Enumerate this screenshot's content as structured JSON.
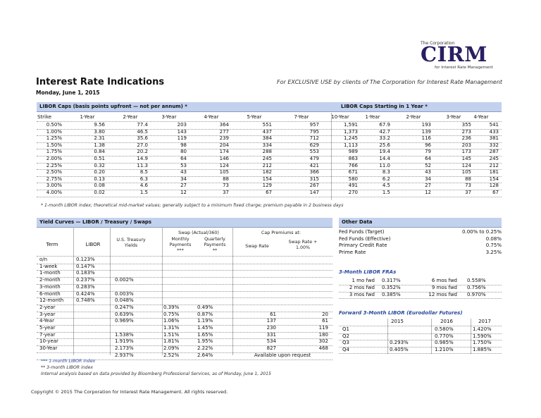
{
  "logo": {
    "corp": "The Corporation",
    "mark": "CIRM",
    "sub": "for Interest Rate Management"
  },
  "header": {
    "title": "Interest Rate Indications",
    "exclusive": "For EXCLUSIVE USE by clients of The Corporation for Interest Rate Management",
    "date": "Monday, June 1, 2015"
  },
  "caps": {
    "bar_title": "LIBOR Caps (basis points upfront — not per annum) *",
    "bar_title_forward": "LIBOR Caps Starting in 1 Year *",
    "columns": [
      "Strike",
      "1-Year",
      "2-Year",
      "3-Year",
      "4-Year",
      "5-Year",
      "7-Year",
      "10-Year"
    ],
    "forward_columns": [
      "1-Year",
      "2-Year",
      "3-Year",
      "4-Year"
    ],
    "rows": [
      [
        "0.50%",
        "9.56",
        "77.4",
        "203",
        "364",
        "551",
        "957",
        "1,591",
        "67.9",
        "193",
        "355",
        "541"
      ],
      [
        "1.00%",
        "3.80",
        "46.5",
        "143",
        "277",
        "437",
        "795",
        "1,373",
        "42.7",
        "139",
        "273",
        "433"
      ],
      [
        "1.25%",
        "2.31",
        "35.6",
        "119",
        "239",
        "384",
        "712",
        "1,245",
        "33.2",
        "116",
        "236",
        "381"
      ],
      [
        "1.50%",
        "1.38",
        "27.0",
        "98",
        "204",
        "334",
        "629",
        "1,113",
        "25.6",
        "96",
        "203",
        "332"
      ],
      [
        "1.75%",
        "0.84",
        "20.2",
        "80",
        "174",
        "288",
        "553",
        "989",
        "19.4",
        "79",
        "173",
        "287"
      ],
      [
        "2.00%",
        "0.51",
        "14.9",
        "64",
        "146",
        "245",
        "479",
        "863",
        "14.4",
        "64",
        "145",
        "245"
      ],
      [
        "2.25%",
        "0.32",
        "11.3",
        "53",
        "124",
        "212",
        "421",
        "766",
        "11.0",
        "52",
        "124",
        "212"
      ],
      [
        "2.50%",
        "0.20",
        "8.5",
        "43",
        "105",
        "182",
        "366",
        "671",
        "8.3",
        "43",
        "105",
        "181"
      ],
      [
        "2.75%",
        "0.13",
        "6.3",
        "34",
        "88",
        "154",
        "315",
        "580",
        "6.2",
        "34",
        "88",
        "154"
      ],
      [
        "3.00%",
        "0.08",
        "4.6",
        "27",
        "73",
        "129",
        "267",
        "491",
        "4.5",
        "27",
        "73",
        "128"
      ],
      [
        "4.00%",
        "0.02",
        "1.5",
        "12",
        "37",
        "67",
        "147",
        "270",
        "1.5",
        "12",
        "37",
        "67"
      ]
    ],
    "footnote": "* 1-month LIBOR index; theoretical mid-market values; generally subject to a minimum fixed charge; premium payable in 2 business days"
  },
  "yields": {
    "bar_title": "Yield Curves —  LIBOR / Treasury / Swaps",
    "h_term": "Term",
    "h_libor": "LIBOR",
    "h_treasury": "U.S. Treasury Yields",
    "h_swap_group": "Swap (Actual/360)",
    "h_monthly": "Monthly Payments",
    "h_monthly_mark": "***",
    "h_quarterly": "Quarterly Payments",
    "h_quarterly_mark": "**",
    "h_cap_group": "Cap Premiums at:",
    "h_swap_rate": "Swap Rate",
    "h_swap_plus": "Swap Rate + 1.00%",
    "rows": [
      [
        "o/n",
        "0.123%",
        "",
        "",
        "",
        "",
        ""
      ],
      [
        "1-week",
        "0.147%",
        "",
        "",
        "",
        "",
        ""
      ],
      [
        "1-month",
        "0.183%",
        "",
        "",
        "",
        "",
        ""
      ],
      [
        "2-month",
        "0.237%",
        "0.002%",
        "",
        "",
        "",
        ""
      ],
      [
        "3-month",
        "0.283%",
        "",
        "",
        "",
        "",
        ""
      ],
      [
        "6-month",
        "0.424%",
        "0.003%",
        "",
        "",
        "",
        ""
      ],
      [
        "12-month",
        "0.748%",
        "0.048%",
        "",
        "",
        "",
        ""
      ],
      [
        "2-year",
        "",
        "0.247%",
        "0.39%",
        "0.49%",
        "",
        ""
      ],
      [
        "3-year",
        "",
        "0.639%",
        "0.75%",
        "0.87%",
        "61",
        "20"
      ],
      [
        "4-Year",
        "",
        "0.969%",
        "1.06%",
        "1.19%",
        "137",
        "61"
      ],
      [
        "5-year",
        "",
        "",
        "1.31%",
        "1.45%",
        "230",
        "119"
      ],
      [
        "7-year",
        "",
        "1.538%",
        "1.51%",
        "1.65%",
        "331",
        "180"
      ],
      [
        "10-year",
        "",
        "1.919%",
        "1.81%",
        "1.95%",
        "534",
        "302"
      ],
      [
        "30-Year",
        "",
        "2.173%",
        "2.09%",
        "2.22%",
        "827",
        "468"
      ],
      [
        "",
        "",
        "2.937%",
        "2.52%",
        "2.64%",
        "",
        ""
      ]
    ],
    "available": "Available upon request",
    "notes": [
      "*** 1-month LIBOR index",
      "** 3-month LIBOR index",
      "Internal analysis based on data provided by Bloomberg Professional Services, as of Monday, June 1, 2015"
    ]
  },
  "other": {
    "bar_title": "Other Data",
    "fed_rows": [
      [
        "Fed Funds (Target)",
        "0.00% to 0.25%"
      ],
      [
        "Fed Funds (Effective)",
        "0.08%"
      ],
      [
        "Primary Credit Rate",
        "0.75%"
      ],
      [
        "Prime Rate",
        "3.25%"
      ]
    ],
    "fra_title": "3-Month LIBOR FRAs",
    "fra_rows": [
      [
        "1 mo fwd",
        "0.317%",
        "6 mos fwd",
        "0.558%"
      ],
      [
        "2 mos fwd",
        "0.352%",
        "9 mos fwd",
        "0.756%"
      ],
      [
        "3 mos fwd",
        "0.385%",
        "12 mos fwd",
        "0.970%"
      ]
    ],
    "fwd_title": "Forward 3-Month LIBOR (Eurodollar Futures)",
    "fwd_years": [
      "2015",
      "2016",
      "2017"
    ],
    "fwd_rows": [
      [
        "Q1",
        "",
        "0.580%",
        "1.420%"
      ],
      [
        "Q2",
        "",
        "0.770%",
        "1.590%"
      ],
      [
        "Q3",
        "0.293%",
        "0.985%",
        "1.750%"
      ],
      [
        "Q4",
        "0.405%",
        "1.210%",
        "1.885%"
      ]
    ]
  },
  "footer": {
    "copyright": "Copyright © 2015 The Corporation for Interest Rate Management. All rights reserved."
  }
}
